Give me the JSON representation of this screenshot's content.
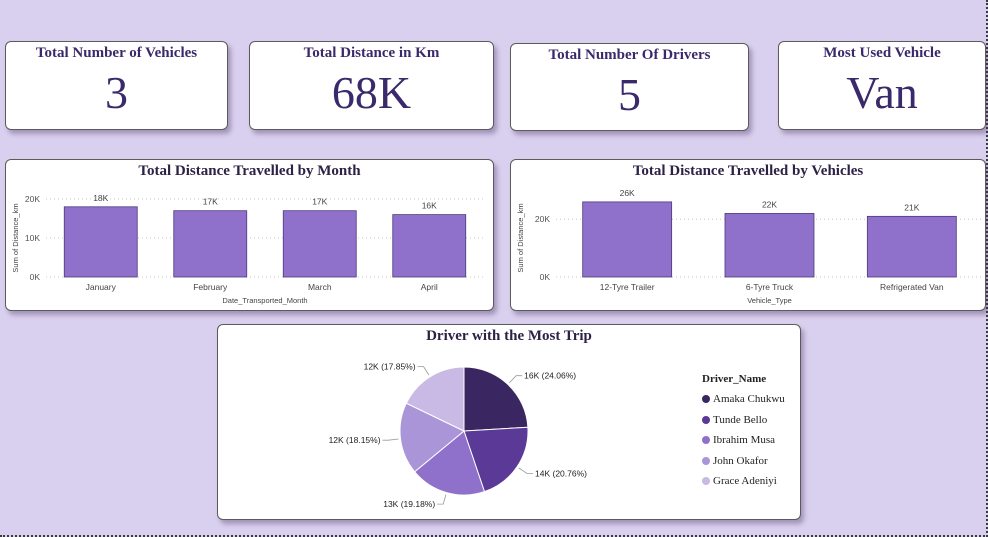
{
  "kpis": [
    {
      "title": "Total Number of Vehicles",
      "value": "3"
    },
    {
      "title": "Total Distance in Km",
      "value": "68K"
    },
    {
      "title": "Total Number Of Drivers",
      "value": "5"
    },
    {
      "title": "Most Used Vehicle",
      "value": "Van"
    }
  ],
  "colors": {
    "bar": "#8f71cc",
    "kpi_text": "#3b2a6b",
    "background": "#d9cfee",
    "pie": [
      "#3a2660",
      "#5a3a96",
      "#8f71cc",
      "#ab95d9",
      "#c8b9e5"
    ]
  },
  "chart_data": [
    {
      "type": "bar",
      "title": "Total Distance Travelled by Month",
      "xlabel": "Date_Transported_Month",
      "ylabel": "Sum of Distance_km",
      "categories": [
        "January",
        "February",
        "March",
        "April"
      ],
      "values": [
        18000,
        17000,
        17000,
        16000
      ],
      "data_labels": [
        "18K",
        "17K",
        "17K",
        "16K"
      ],
      "yticks": [
        0,
        10000,
        20000
      ],
      "ytick_labels": [
        "0K",
        "10K",
        "20K"
      ],
      "ylim": [
        0,
        20000
      ],
      "grid": true
    },
    {
      "type": "bar",
      "title": "Total Distance Travelled by Vehicles",
      "xlabel": "Vehicle_Type",
      "ylabel": "Sum of Distance_km",
      "categories": [
        "12-Tyre Trailer",
        "6-Tyre Truck",
        "Refrigerated Van"
      ],
      "values": [
        26000,
        22000,
        21000
      ],
      "data_labels": [
        "26K",
        "22K",
        "21K"
      ],
      "yticks": [
        0,
        20000
      ],
      "ytick_labels": [
        "0K",
        "20K"
      ],
      "ylim": [
        0,
        27000
      ],
      "grid": true
    },
    {
      "type": "pie",
      "title": "Driver with the Most Trip",
      "legend_title": "Driver_Name",
      "legend_position": "right",
      "labels": [
        "Amaka Chukwu",
        "Tunde Bello",
        "Ibrahim Musa",
        "John Okafor",
        "Grace Adeniyi"
      ],
      "values": [
        16000,
        14000,
        13000,
        12000,
        12000
      ],
      "percents": [
        24.06,
        20.76,
        19.18,
        18.15,
        17.85
      ],
      "data_labels": [
        "16K (24.06%)",
        "14K (20.76%)",
        "13K (19.18%)",
        "12K (18.15%)",
        "12K (17.85%)"
      ]
    }
  ]
}
